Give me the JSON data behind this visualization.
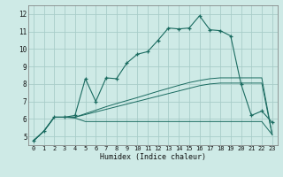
{
  "title": "",
  "xlabel": "Humidex (Indice chaleur)",
  "xlim": [
    -0.5,
    23.5
  ],
  "ylim": [
    4.5,
    12.5
  ],
  "yticks": [
    5,
    6,
    7,
    8,
    9,
    10,
    11,
    12
  ],
  "xticks": [
    0,
    1,
    2,
    3,
    4,
    5,
    6,
    7,
    8,
    9,
    10,
    11,
    12,
    13,
    14,
    15,
    16,
    17,
    18,
    19,
    20,
    21,
    22,
    23
  ],
  "bg_color": "#ceeae6",
  "grid_color": "#a8cdc9",
  "line_color": "#1a6b60",
  "line1_x": [
    0,
    1,
    2,
    3,
    4,
    5,
    6,
    7,
    8,
    9,
    10,
    11,
    12,
    13,
    14,
    15,
    16,
    17,
    18,
    19,
    20,
    21,
    22,
    23
  ],
  "line1_y": [
    4.75,
    5.3,
    6.1,
    6.1,
    6.2,
    8.3,
    7.0,
    8.35,
    8.3,
    9.2,
    9.7,
    9.85,
    10.5,
    11.2,
    11.15,
    11.2,
    11.9,
    11.1,
    11.05,
    10.75,
    8.0,
    6.2,
    6.45,
    5.8
  ],
  "line2_x": [
    0,
    1,
    2,
    3,
    4,
    5,
    6,
    7,
    8,
    9,
    10,
    11,
    12,
    13,
    14,
    15,
    16,
    17,
    18,
    19,
    20,
    21,
    22,
    23
  ],
  "line2_y": [
    4.75,
    5.3,
    6.1,
    6.1,
    6.05,
    5.85,
    5.85,
    5.85,
    5.85,
    5.85,
    5.85,
    5.85,
    5.85,
    5.85,
    5.85,
    5.85,
    5.85,
    5.85,
    5.85,
    5.85,
    5.85,
    5.85,
    5.85,
    5.1
  ],
  "line3_x": [
    0,
    1,
    2,
    3,
    4,
    5,
    6,
    7,
    8,
    9,
    10,
    11,
    12,
    13,
    14,
    15,
    16,
    17,
    18,
    19,
    20,
    21,
    22,
    23
  ],
  "line3_y": [
    4.75,
    5.3,
    6.1,
    6.1,
    6.1,
    6.25,
    6.4,
    6.55,
    6.7,
    6.85,
    7.0,
    7.15,
    7.3,
    7.45,
    7.6,
    7.75,
    7.9,
    8.0,
    8.05,
    8.05,
    8.05,
    8.05,
    8.05,
    5.1
  ],
  "line4_x": [
    0,
    1,
    2,
    3,
    4,
    5,
    6,
    7,
    8,
    9,
    10,
    11,
    12,
    13,
    14,
    15,
    16,
    17,
    18,
    19,
    20,
    21,
    22,
    23
  ],
  "line4_y": [
    4.75,
    5.3,
    6.1,
    6.1,
    6.1,
    6.3,
    6.5,
    6.7,
    6.88,
    7.05,
    7.22,
    7.4,
    7.58,
    7.75,
    7.92,
    8.08,
    8.2,
    8.3,
    8.35,
    8.35,
    8.35,
    8.35,
    8.35,
    5.1
  ]
}
